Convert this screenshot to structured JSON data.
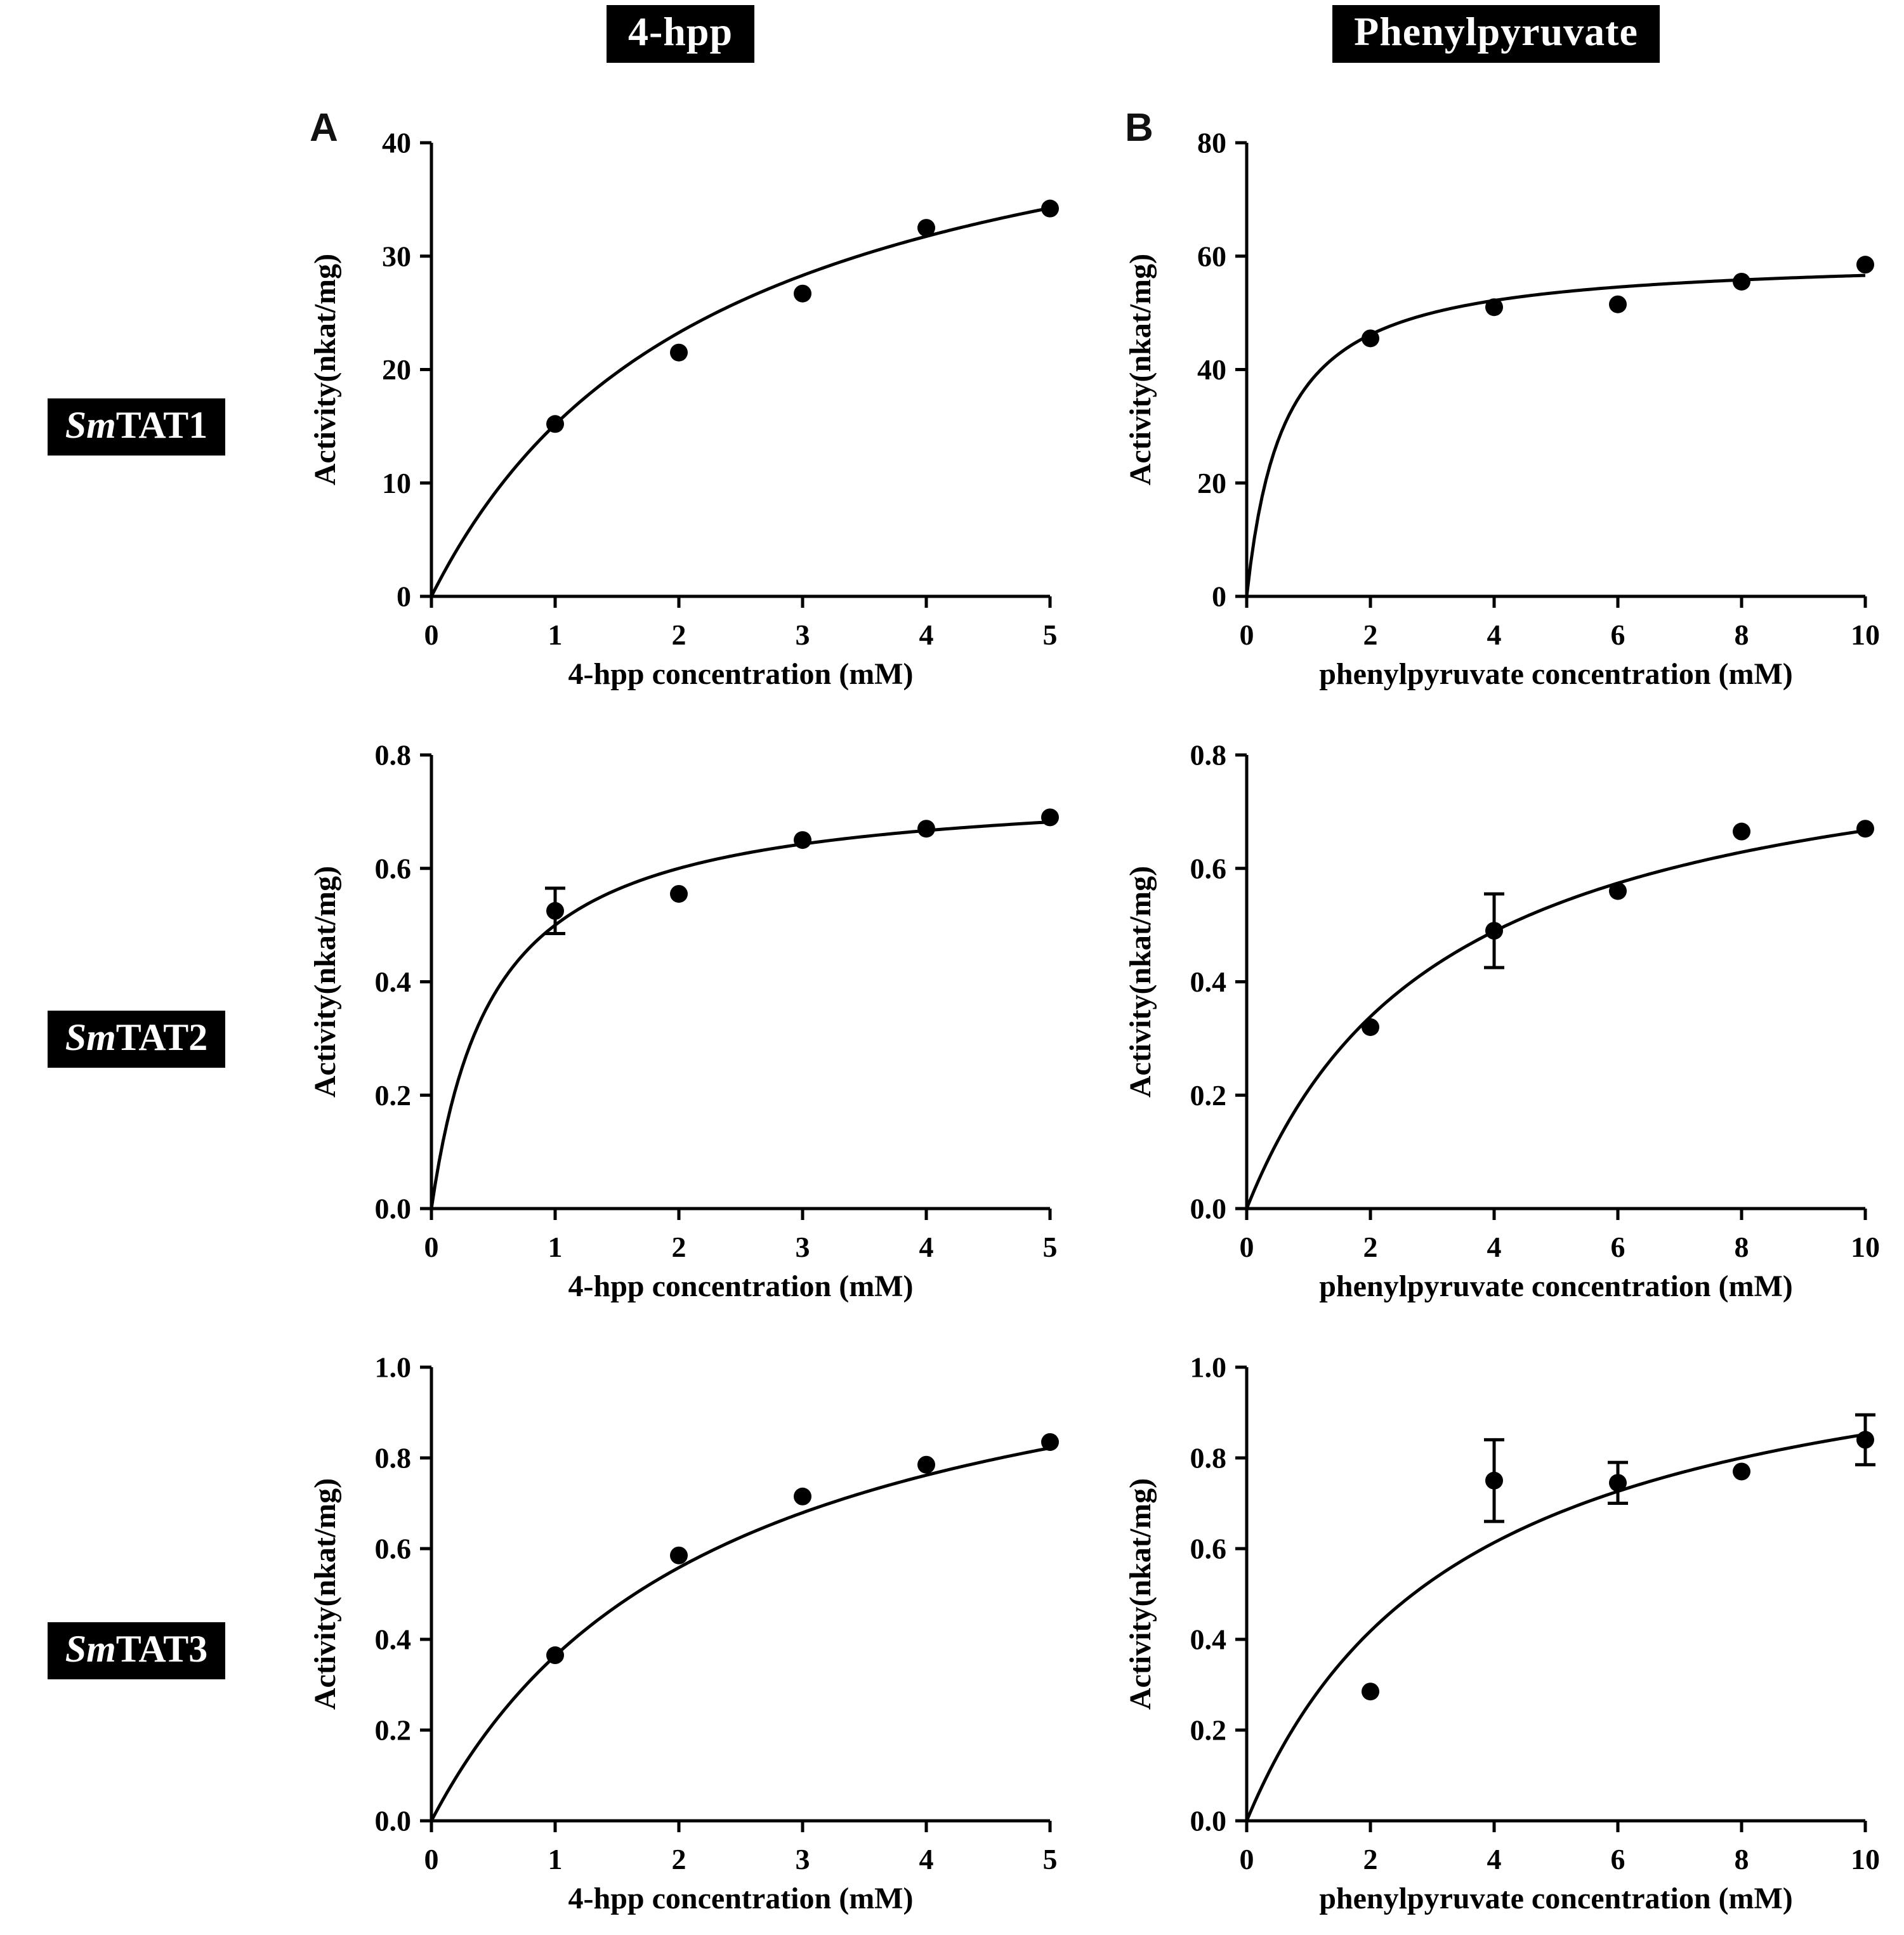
{
  "figure": {
    "column_headers": [
      {
        "label": "4-hpp"
      },
      {
        "label": "Phenylpyruvate"
      }
    ],
    "row_labels": [
      {
        "prefix": "Sm",
        "name": "TAT1"
      },
      {
        "prefix": "Sm",
        "name": "TAT2"
      },
      {
        "prefix": "Sm",
        "name": "TAT3"
      }
    ],
    "panel_letters": [
      "A",
      "B"
    ],
    "colors": {
      "points": "#000000",
      "curve": "#000000",
      "axis": "#000000",
      "label_box_bg": "#000000",
      "label_box_text": "#ffffff"
    }
  },
  "chart_data": [
    {
      "id": "smtat1-4hpp",
      "type": "scatter",
      "panel": "A",
      "enzyme": "SmTAT1",
      "substrate": "4-hpp",
      "xlabel": "4-hpp concentration (mM)",
      "ylabel": "Activity(nkat/mg)",
      "xlim": [
        0,
        5
      ],
      "ylim": [
        0,
        40
      ],
      "xticks": [
        0,
        1,
        2,
        3,
        4,
        5
      ],
      "yticks": [
        0,
        10,
        20,
        30,
        40
      ],
      "ydecimals": 0,
      "x": [
        1,
        2,
        3,
        4,
        5
      ],
      "y": [
        15.2,
        21.5,
        26.7,
        32.5,
        34.2
      ],
      "yerr": [
        0,
        0,
        0,
        0,
        0
      ],
      "fit": {
        "model": "michaelis-menten",
        "vmax": 50,
        "km": 2.3
      }
    },
    {
      "id": "smtat1-phenylpyruvate",
      "type": "scatter",
      "panel": "B",
      "enzyme": "SmTAT1",
      "substrate": "Phenylpyruvate",
      "xlabel": "phenylpyruvate concentration (mM)",
      "ylabel": "Activity(nkat/mg)",
      "xlim": [
        0,
        10
      ],
      "ylim": [
        0,
        80
      ],
      "xticks": [
        0,
        2,
        4,
        6,
        8,
        10
      ],
      "yticks": [
        0,
        20,
        40,
        60,
        80
      ],
      "ydecimals": 0,
      "x": [
        2,
        4,
        6,
        8,
        10
      ],
      "y": [
        45.5,
        51,
        51.5,
        55.5,
        58.5
      ],
      "yerr": [
        0,
        0,
        0,
        0,
        0
      ],
      "fit": {
        "model": "michaelis-menten",
        "vmax": 60,
        "km": 0.6
      }
    },
    {
      "id": "smtat2-4hpp",
      "type": "scatter",
      "panel": "A",
      "enzyme": "SmTAT2",
      "substrate": "4-hpp",
      "xlabel": "4-hpp concentration (mM)",
      "ylabel": "Activity(nkat/mg)",
      "xlim": [
        0,
        5
      ],
      "ylim": [
        0,
        0.8
      ],
      "xticks": [
        0,
        1,
        2,
        3,
        4,
        5
      ],
      "yticks": [
        0,
        0.2,
        0.4,
        0.6,
        0.8
      ],
      "ydecimals": 1,
      "x": [
        1,
        2,
        3,
        4,
        5
      ],
      "y": [
        0.525,
        0.555,
        0.65,
        0.67,
        0.69
      ],
      "yerr": [
        0.04,
        0,
        0,
        0,
        0
      ],
      "fit": {
        "model": "michaelis-menten",
        "vmax": 0.75,
        "km": 0.5
      }
    },
    {
      "id": "smtat2-phenylpyruvate",
      "type": "scatter",
      "panel": "B",
      "enzyme": "SmTAT2",
      "substrate": "Phenylpyruvate",
      "xlabel": "phenylpyruvate concentration (mM)",
      "ylabel": "Activity(nkat/mg)",
      "xlim": [
        0,
        10
      ],
      "ylim": [
        0,
        0.8
      ],
      "xticks": [
        0,
        2,
        4,
        6,
        8,
        10
      ],
      "yticks": [
        0,
        0.2,
        0.4,
        0.6,
        0.8
      ],
      "ydecimals": 1,
      "x": [
        2,
        4,
        6,
        8,
        10
      ],
      "y": [
        0.32,
        0.49,
        0.56,
        0.665,
        0.67
      ],
      "yerr": [
        0,
        0.065,
        0,
        0,
        0
      ],
      "fit": {
        "model": "michaelis-menten",
        "vmax": 0.88,
        "km": 3.2
      }
    },
    {
      "id": "smtat3-4hpp",
      "type": "scatter",
      "panel": "A",
      "enzyme": "SmTAT3",
      "substrate": "4-hpp",
      "xlabel": "4-hpp concentration (mM)",
      "ylabel": "Activity(nkat/mg)",
      "xlim": [
        0,
        5
      ],
      "ylim": [
        0,
        1.0
      ],
      "xticks": [
        0,
        1,
        2,
        3,
        4,
        5
      ],
      "yticks": [
        0,
        0.2,
        0.4,
        0.6,
        0.8,
        1.0
      ],
      "ydecimals": 1,
      "x": [
        1,
        2,
        3,
        4,
        5
      ],
      "y": [
        0.365,
        0.585,
        0.715,
        0.785,
        0.835
      ],
      "yerr": [
        0,
        0,
        0,
        0,
        0
      ],
      "fit": {
        "model": "michaelis-menten",
        "vmax": 1.2,
        "km": 2.3
      }
    },
    {
      "id": "smtat3-phenylpyruvate",
      "type": "scatter",
      "panel": "B",
      "enzyme": "SmTAT3",
      "substrate": "Phenylpyruvate",
      "xlabel": "phenylpyruvate concentration (mM)",
      "ylabel": "Activity(nkat/mg)",
      "xlim": [
        0,
        10
      ],
      "ylim": [
        0,
        1.0
      ],
      "xticks": [
        0,
        2,
        4,
        6,
        8,
        10
      ],
      "yticks": [
        0,
        0.2,
        0.4,
        0.6,
        0.8,
        1.0
      ],
      "ydecimals": 1,
      "x": [
        2,
        4,
        6,
        8,
        10
      ],
      "y": [
        0.285,
        0.75,
        0.745,
        0.77,
        0.84
      ],
      "yerr": [
        0,
        0.09,
        0.045,
        0,
        0.055
      ],
      "fit": {
        "model": "michaelis-menten",
        "vmax": 1.15,
        "km": 3.5
      }
    }
  ]
}
